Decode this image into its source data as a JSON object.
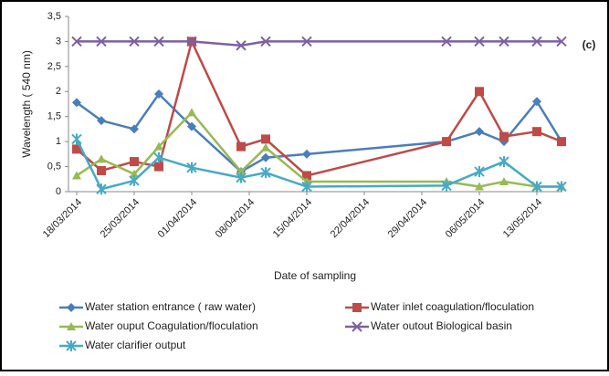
{
  "chart_data": {
    "type": "line",
    "annotation": "(c)",
    "y_label": "Wavelength ( 540 nm)",
    "x_label": "Date of sampling",
    "x": [
      "2014-03-18",
      "2014-03-21",
      "2014-03-25",
      "2014-03-28",
      "2014-04-01",
      "2014-04-07",
      "2014-04-10",
      "2014-04-15",
      "2014-05-02",
      "2014-05-06",
      "2014-05-09",
      "2014-05-13",
      "2014-05-16"
    ],
    "xlim": [
      "2014-03-17",
      "2014-05-16"
    ],
    "xticks": [
      {
        "value": "2014-03-18",
        "label": "18/03/2014"
      },
      {
        "value": "2014-03-25",
        "label": "25/03/2014"
      },
      {
        "value": "2014-04-01",
        "label": "01/04/2014"
      },
      {
        "value": "2014-04-08",
        "label": "08/04/2014"
      },
      {
        "value": "2014-04-15",
        "label": "15/04/2014"
      },
      {
        "value": "2014-04-22",
        "label": "22/04/2014"
      },
      {
        "value": "2014-04-29",
        "label": "29/04/2014"
      },
      {
        "value": "2014-05-06",
        "label": "06/05/2014"
      },
      {
        "value": "2014-05-13",
        "label": "13/05/2014"
      }
    ],
    "ylim": [
      0,
      3.5
    ],
    "yticks": [
      0,
      {
        "value": 0.5,
        "label": "0,5"
      },
      1,
      {
        "value": 1.5,
        "label": "1,5"
      },
      2,
      {
        "value": 2.5,
        "label": "2,5"
      },
      3,
      {
        "value": 3.5,
        "label": "3,5"
      }
    ],
    "grid": false,
    "series": [
      {
        "name": "Water station entrance ( raw water)",
        "color": "#4a7ebb",
        "marker": "diamond",
        "values": [
          1.78,
          1.42,
          1.25,
          1.95,
          1.3,
          0.4,
          0.68,
          0.75,
          1.0,
          1.2,
          1.0,
          1.8,
          1.0
        ]
      },
      {
        "name": "Water inlet coagulation/floculation",
        "color": "#be4b48",
        "marker": "square",
        "values": [
          0.85,
          0.42,
          0.6,
          0.5,
          3.0,
          0.9,
          1.05,
          0.32,
          1.0,
          2.0,
          1.1,
          1.2,
          1.0
        ]
      },
      {
        "name": "Water ouput Coagulation/floculation",
        "color": "#98b954",
        "marker": "triangle",
        "values": [
          0.32,
          0.65,
          0.35,
          0.9,
          1.58,
          0.4,
          0.88,
          0.2,
          0.2,
          0.1,
          0.2,
          0.1,
          0.1
        ]
      },
      {
        "name": "Water outout Biological basin",
        "color": "#7d60a0",
        "marker": "x",
        "values": [
          3.0,
          3.0,
          3.0,
          3.0,
          3.0,
          2.92,
          3.0,
          3.0,
          3.0,
          3.0,
          3.0,
          3.0,
          3.0
        ]
      },
      {
        "name": "Water clarifier output",
        "color": "#46aac5",
        "marker": "star",
        "values": [
          1.05,
          0.05,
          0.22,
          0.68,
          0.48,
          0.28,
          0.38,
          0.1,
          0.12,
          0.4,
          0.6,
          0.1,
          0.1
        ]
      }
    ]
  }
}
